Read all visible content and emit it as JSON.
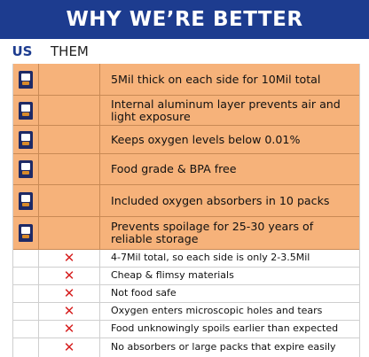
{
  "header": {
    "title": "WHY WE’RE BETTER"
  },
  "columns": {
    "us": "US",
    "them": "THEM"
  },
  "icons": {
    "us_mark": "mylar-bag-icon",
    "them_mark": "red-x-icon"
  },
  "colors": {
    "header_bg": "#1d3c8f",
    "us_row_bg": "#f6b27a",
    "x_color": "#d62020"
  },
  "us_rows": [
    {
      "text": "5Mil thick on each side for 10Mil total"
    },
    {
      "text": "Internal aluminum layer prevents air and light exposure"
    },
    {
      "text": "Keeps oxygen levels below 0.01%"
    },
    {
      "text": "Food grade & BPA free"
    },
    {
      "text": "Included oxygen absorbers in 10 packs"
    },
    {
      "text": "Prevents spoilage for 25-30 years of reliable storage"
    }
  ],
  "them_rows": [
    {
      "text": "4-7Mil total, so each side is only 2-3.5Mil"
    },
    {
      "text": "Cheap & flimsy materials"
    },
    {
      "text": "Not food safe"
    },
    {
      "text": "Oxygen enters microscopic holes and tears"
    },
    {
      "text": "Food unknowingly spoils earlier than expected"
    },
    {
      "text": "No absorbers or large packs that expire easily"
    }
  ]
}
